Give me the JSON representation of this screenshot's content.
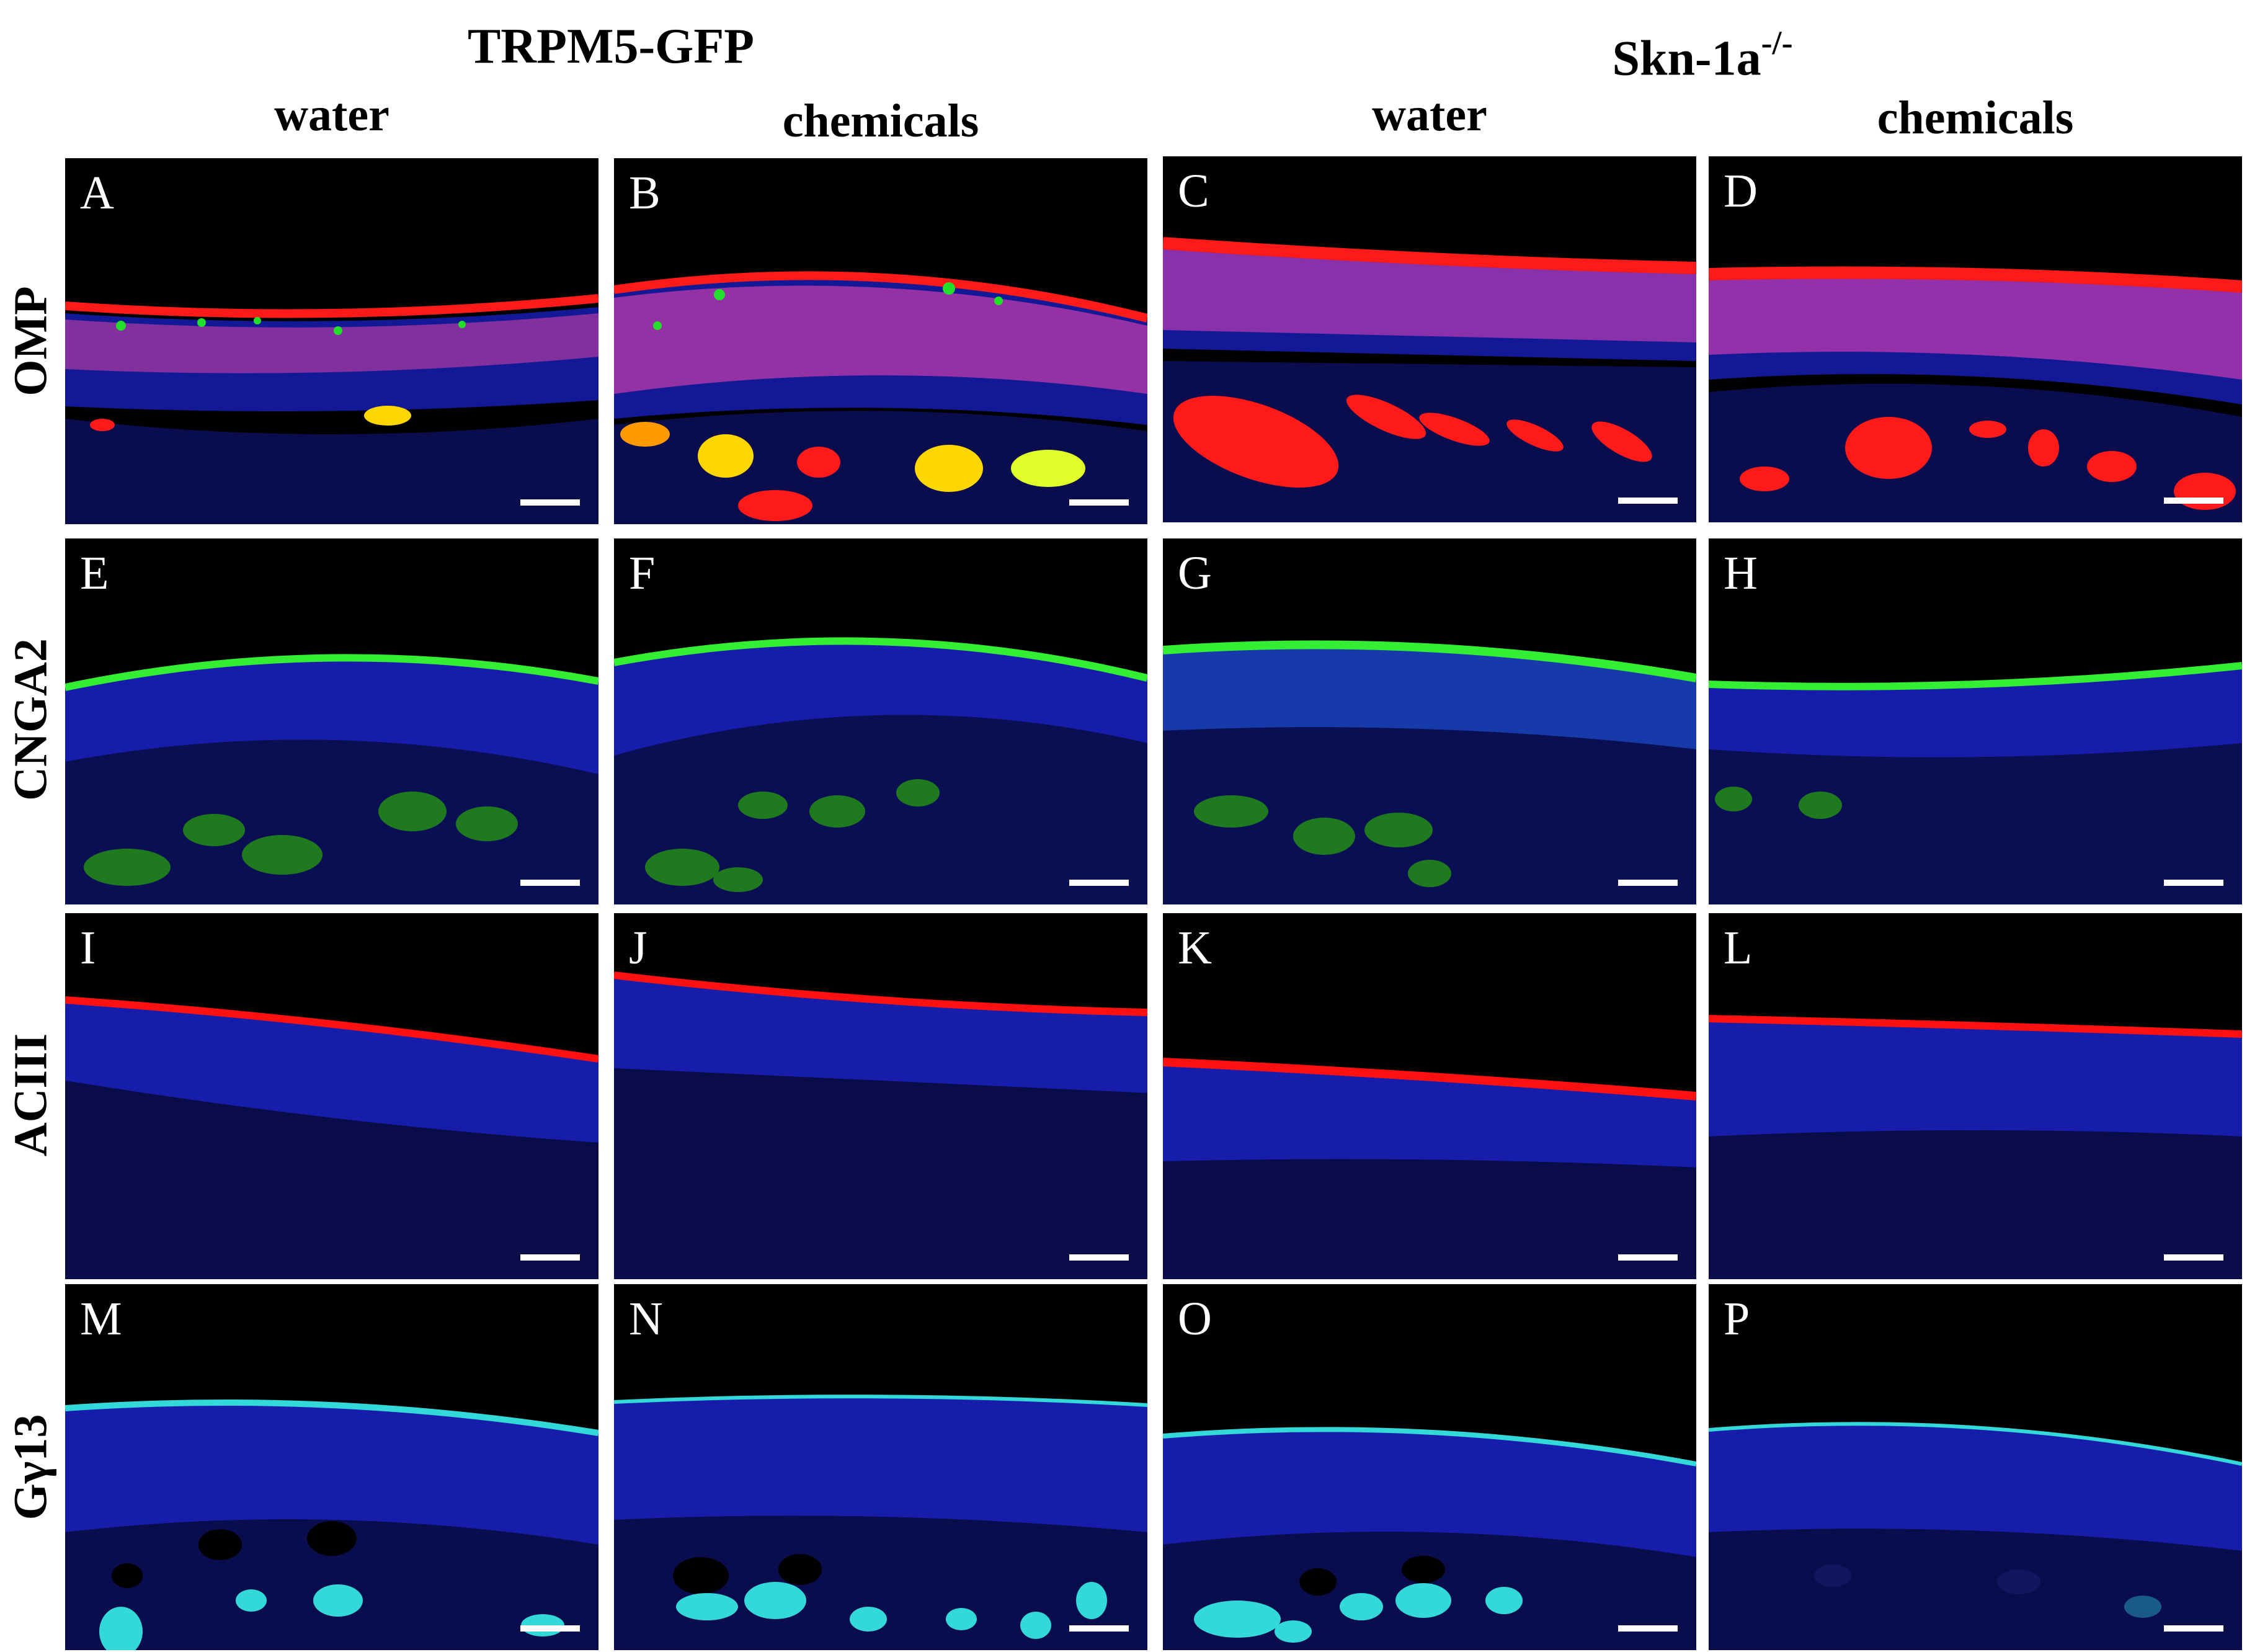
{
  "groups": [
    {
      "label": "TRPM5-GFP",
      "sup": ""
    },
    {
      "label": "Skn-1a",
      "sup": "-/-"
    }
  ],
  "columns": [
    "water",
    "chemicals",
    "water",
    "chemicals"
  ],
  "rows": [
    {
      "label": "OMP",
      "panels": [
        "A",
        "B",
        "C",
        "D"
      ]
    },
    {
      "label": "CNGA2",
      "panels": [
        "E",
        "F",
        "G",
        "H"
      ]
    },
    {
      "label": "ACIII",
      "panels": [
        "I",
        "J",
        "K",
        "L"
      ]
    },
    {
      "label": "Gγ13",
      "panels": [
        "M",
        "N",
        "O",
        "P"
      ]
    }
  ],
  "colors": {
    "background": "#000000",
    "nuclei_blue": "#1a22c8",
    "omp_red": "#ff1a1a",
    "gfp_green": "#22e02a",
    "cnga2_green": "#33ee33",
    "aciii_red": "#ff1010",
    "ggamma13_cyan": "#33d8d8",
    "scale_bar": "#ffffff"
  },
  "icons": {
    "scale_bar": "scale-bar-icon"
  }
}
